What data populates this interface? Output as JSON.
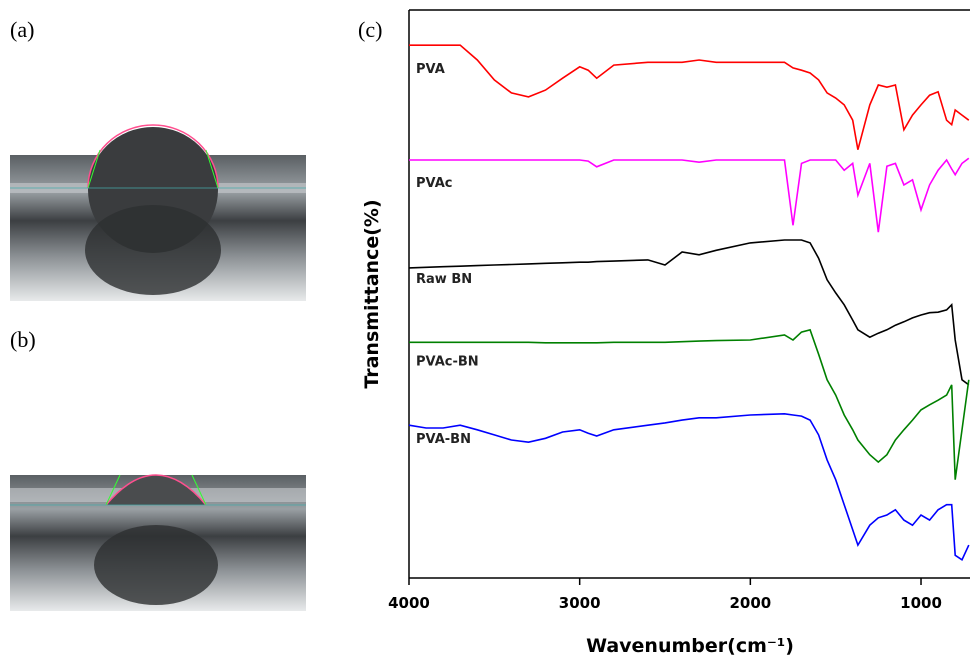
{
  "panel_labels": {
    "a": "(a)",
    "b": "(b)",
    "c": "(c)"
  },
  "chart_data": {
    "type": "line",
    "xlabel": "Wavenumber(cm⁻¹)",
    "ylabel": "Transmittance(%)",
    "xlim": [
      4000,
      713
    ],
    "ylim": [
      0,
      100
    ],
    "xticks": [
      4000,
      3000,
      2000,
      1000
    ],
    "x": [
      4000,
      3900,
      3800,
      3700,
      3600,
      3500,
      3400,
      3300,
      3200,
      3100,
      3000,
      2950,
      2900,
      2800,
      2600,
      2500,
      2400,
      2300,
      2200,
      2000,
      1800,
      1750,
      1700,
      1650,
      1600,
      1550,
      1500,
      1450,
      1400,
      1370,
      1300,
      1250,
      1200,
      1150,
      1100,
      1050,
      1000,
      950,
      900,
      850,
      820,
      800,
      760,
      720
    ],
    "series": [
      {
        "name": "PVA",
        "color": "#ff0000",
        "values": [
          93.8,
          93.8,
          93.8,
          93.8,
          91.2,
          87.7,
          85.4,
          84.7,
          85.9,
          88.0,
          90.0,
          89.4,
          88.0,
          90.3,
          90.8,
          90.8,
          90.8,
          91.2,
          90.8,
          90.8,
          90.8,
          89.8,
          89.4,
          88.9,
          87.7,
          85.4,
          84.5,
          83.3,
          80.6,
          75.4,
          83.3,
          86.8,
          86.4,
          86.8,
          78.9,
          81.5,
          83.3,
          85.0,
          85.6,
          80.6,
          79.8,
          82.4,
          81.5,
          80.6
        ]
      },
      {
        "name": "PVAc",
        "color": "#ff00ff",
        "values": [
          73.6,
          73.6,
          73.6,
          73.6,
          73.6,
          73.6,
          73.6,
          73.6,
          73.6,
          73.6,
          73.6,
          73.4,
          72.4,
          73.6,
          73.6,
          73.6,
          73.6,
          73.2,
          73.6,
          73.6,
          73.6,
          62.1,
          73.0,
          73.6,
          73.6,
          73.6,
          73.6,
          71.8,
          73.0,
          67.4,
          73.0,
          60.9,
          72.5,
          73.0,
          69.2,
          70.1,
          64.8,
          69.2,
          71.8,
          73.6,
          72.0,
          71.0,
          73.0,
          73.9
        ]
      },
      {
        "name": "Raw BN",
        "color": "#000000",
        "values": [
          54.6,
          54.7,
          54.8,
          54.9,
          55.0,
          55.1,
          55.2,
          55.3,
          55.4,
          55.5,
          55.6,
          55.6,
          55.7,
          55.8,
          56.0,
          55.1,
          57.4,
          56.9,
          57.7,
          59.0,
          59.5,
          59.5,
          59.5,
          59.0,
          56.3,
          52.5,
          50.2,
          48.1,
          45.4,
          43.7,
          42.4,
          43.1,
          43.7,
          44.5,
          45.1,
          45.8,
          46.3,
          46.7,
          46.8,
          47.2,
          48.1,
          41.9,
          34.9,
          34.0
        ]
      },
      {
        "name": "PVAc-BN",
        "color": "#008000",
        "values": [
          41.5,
          41.5,
          41.5,
          41.5,
          41.5,
          41.5,
          41.5,
          41.5,
          41.4,
          41.4,
          41.4,
          41.4,
          41.4,
          41.5,
          41.5,
          41.5,
          41.6,
          41.7,
          41.8,
          41.9,
          42.8,
          41.9,
          43.3,
          43.7,
          39.4,
          34.9,
          32.2,
          28.7,
          26.1,
          24.3,
          21.7,
          20.4,
          21.7,
          24.3,
          26.1,
          27.8,
          29.6,
          30.5,
          31.3,
          32.2,
          34.0,
          17.3,
          26.1,
          34.9
        ]
      },
      {
        "name": "PVA-BN",
        "color": "#0000ff",
        "values": [
          26.9,
          26.4,
          26.4,
          26.9,
          26.1,
          25.2,
          24.3,
          23.9,
          24.6,
          25.7,
          26.1,
          25.5,
          25.0,
          26.1,
          26.9,
          27.3,
          27.8,
          28.2,
          28.2,
          28.7,
          28.9,
          28.7,
          28.5,
          27.8,
          25.2,
          20.8,
          17.3,
          12.9,
          8.5,
          5.8,
          9.3,
          10.6,
          11.1,
          12.0,
          10.2,
          9.3,
          11.1,
          10.2,
          12.0,
          12.9,
          12.9,
          4.0,
          3.2,
          5.8
        ]
      }
    ]
  }
}
